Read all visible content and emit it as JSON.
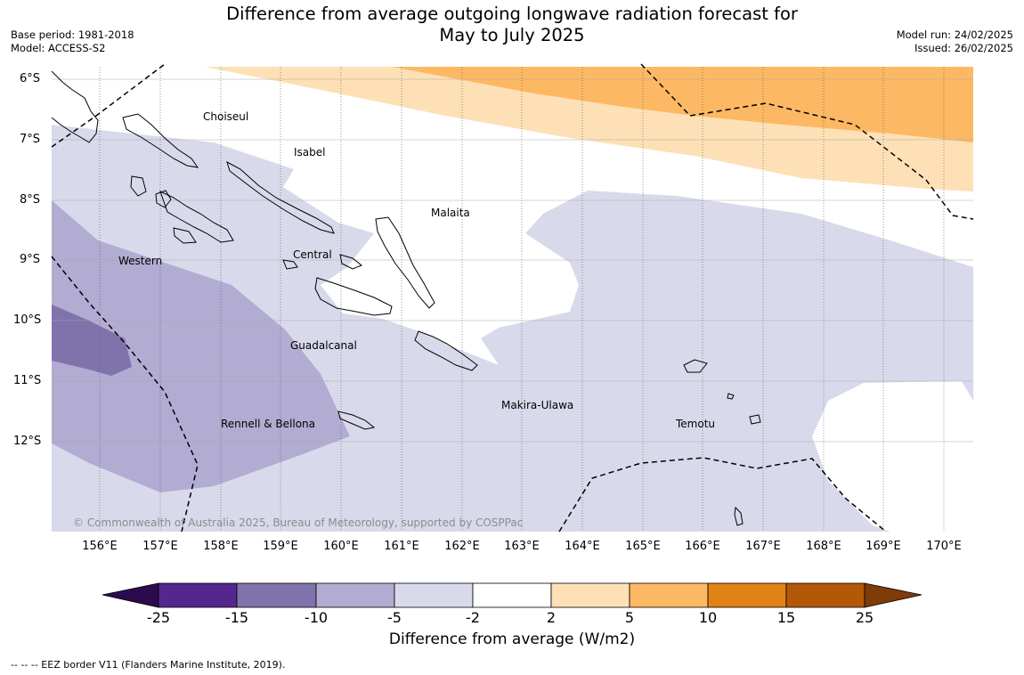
{
  "title_line1": "Difference from average outgoing longwave radiation forecast for",
  "title_line2": "May to July 2025",
  "base_period": "Base period: 1981-2018",
  "model": "Model: ACCESS-S2",
  "model_run": "Model run: 24/02/2025",
  "issued": "Issued: 26/02/2025",
  "copyright": "© Commonwealth of Australia 2025, Bureau of Meteorology, supported by COSPPac",
  "footnote": "--  --  -- EEZ border V11 (Flanders Marine Institute, 2019).",
  "lat_ticks": [
    "6°S",
    "7°S",
    "8°S",
    "9°S",
    "10°S",
    "11°S",
    "12°S"
  ],
  "lon_ticks": [
    "156°E",
    "157°E",
    "158°E",
    "159°E",
    "160°E",
    "161°E",
    "162°E",
    "163°E",
    "164°E",
    "165°E",
    "166°E",
    "167°E",
    "168°E",
    "169°E",
    "170°E"
  ],
  "regions": [
    "Choiseul",
    "Isabel",
    "Malaita",
    "Western",
    "Central",
    "Guadalcanal",
    "Makira-Ulawa",
    "Rennell & Bellona",
    "Temotu"
  ],
  "colorbar": {
    "label": "Difference from average (W/m2)",
    "ticks": [
      "-25",
      "-15",
      "-10",
      "-5",
      "-2",
      "2",
      "5",
      "10",
      "15",
      "25"
    ],
    "colors": [
      "#2d0a4e",
      "#54278f",
      "#8073ac",
      "#b2abd2",
      "#d8daeb",
      "#ffffff",
      "#fee0b6",
      "#fdb863",
      "#e08214",
      "#b35806",
      "#7f3b08"
    ]
  },
  "chart_data": {
    "type": "heatmap",
    "title": "Difference from average outgoing longwave radiation forecast for May to July 2025",
    "xlabel": "",
    "ylabel": "",
    "x_range_degE": [
      155.2,
      170.5
    ],
    "y_range_degS": [
      5.8,
      13.5
    ],
    "units": "W/m2",
    "class_bounds": [
      -25,
      -15,
      -10,
      -5,
      -2,
      2,
      5,
      10,
      15,
      25
    ],
    "features": [
      "EEZ border (dashed)",
      "coastlines"
    ]
  }
}
